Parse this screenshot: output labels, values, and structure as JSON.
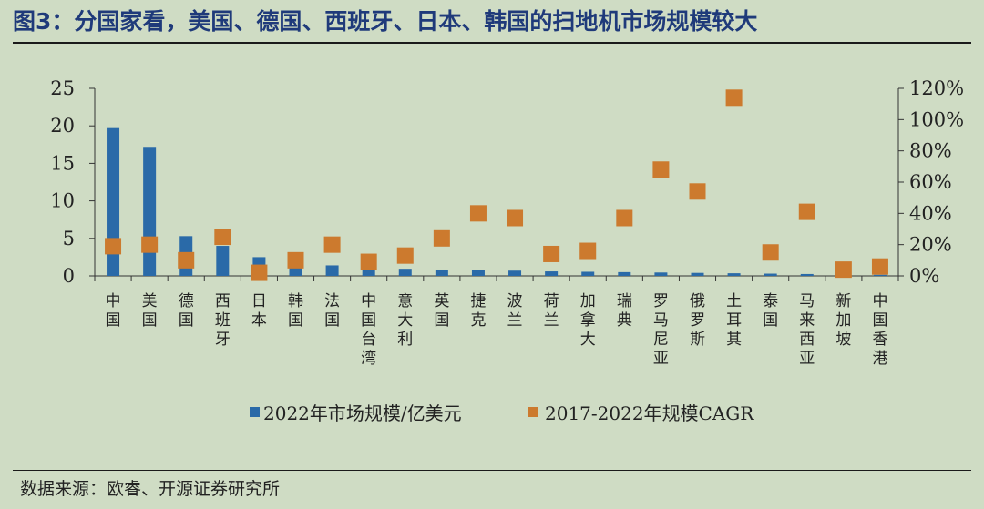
{
  "title": "图3：分国家看，美国、德国、西班牙、日本、韩国的扫地机市场规模较大",
  "source": "数据来源：欧睿、开源证券研究所",
  "colors": {
    "bar": "#2a6aa8",
    "marker": "#cc7a2e",
    "axis": "#333333",
    "background": "#cfdcc4",
    "title": "#1f3a7a"
  },
  "chart_data": {
    "type": "bar",
    "categories": [
      "中国",
      "美国",
      "德国",
      "西班牙",
      "日本",
      "韩国",
      "法国",
      "中国台湾",
      "意大利",
      "英国",
      "捷克",
      "波兰",
      "荷兰",
      "加拿大",
      "瑞典",
      "罗马尼亚",
      "俄罗斯",
      "土耳其",
      "泰国",
      "马来西亚",
      "新加坡",
      "中国香港"
    ],
    "series": [
      {
        "name": "2022年市场规模/亿美元",
        "type": "bar",
        "axis": "left",
        "values": [
          19.7,
          17.2,
          5.3,
          4.0,
          2.5,
          1.9,
          1.4,
          1.0,
          0.95,
          0.85,
          0.75,
          0.7,
          0.6,
          0.55,
          0.5,
          0.45,
          0.4,
          0.35,
          0.3,
          0.25,
          0.2,
          0.15
        ]
      },
      {
        "name": "2017-2022年规模CAGR",
        "type": "scatter",
        "axis": "right",
        "values": [
          0.19,
          0.2,
          0.1,
          0.25,
          0.02,
          0.1,
          0.2,
          0.09,
          0.13,
          0.24,
          0.4,
          0.37,
          0.14,
          0.16,
          0.37,
          0.68,
          0.54,
          1.14,
          0.15,
          0.41,
          0.04,
          0.06
        ]
      }
    ],
    "y_left": {
      "min": 0,
      "max": 25,
      "ticks": [
        "0",
        "5",
        "10",
        "15",
        "20",
        "25"
      ]
    },
    "y_right": {
      "min": 0,
      "max": 1.2,
      "ticks": [
        "0%",
        "20%",
        "40%",
        "60%",
        "80%",
        "100%",
        "120%"
      ]
    },
    "legend_position": "bottom",
    "grid": false
  }
}
